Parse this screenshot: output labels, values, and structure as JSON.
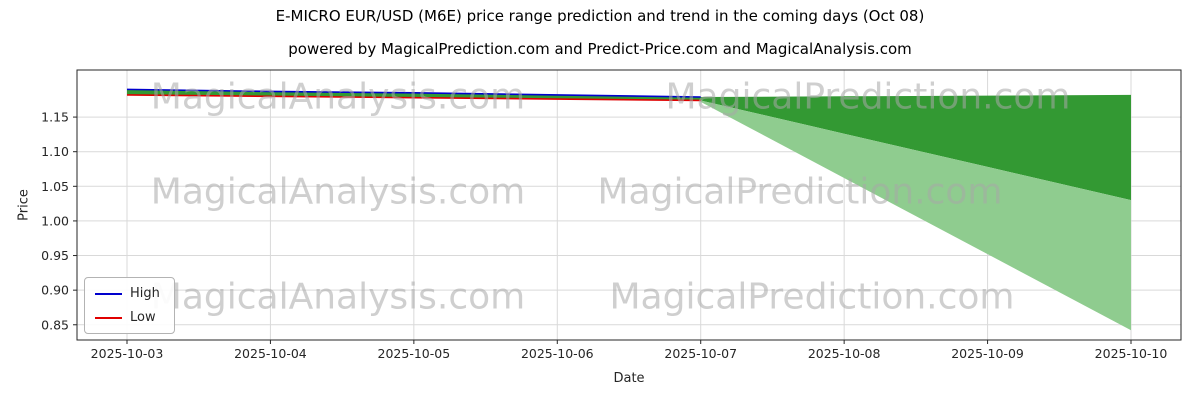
{
  "title": "E-MICRO EUR/USD (M6E) price range prediction and trend in the coming days (Oct 08)",
  "subtitle": "powered by MagicalPrediction.com and Predict-Price.com and MagicalAnalysis.com",
  "watermarks": {
    "left_text": "MagicalAnalysis.com",
    "right_text": "MagicalPrediction.com",
    "color": "#a8a8a8"
  },
  "legend": {
    "position": "lower left",
    "items": [
      {
        "label": "High",
        "color": "#0000cd"
      },
      {
        "label": "Low",
        "color": "#e00000"
      }
    ]
  },
  "chart_data": {
    "type": "line",
    "title": "E-MICRO EUR/USD (M6E) price range prediction and trend in the coming days (Oct 08)",
    "xlabel": "Date",
    "ylabel": "Price",
    "x_dates": [
      "2025-10-03",
      "2025-10-04",
      "2025-10-05",
      "2025-10-06",
      "2025-10-07",
      "2025-10-08",
      "2025-10-09",
      "2025-10-10"
    ],
    "ylim": [
      0.828,
      1.218
    ],
    "yticks": [
      0.85,
      0.9,
      0.95,
      1.0,
      1.05,
      1.1,
      1.15
    ],
    "grid": true,
    "grid_color": "#d9d9d9",
    "spine_color": "#262626",
    "series": [
      {
        "name": "High",
        "color": "#0000cd",
        "values": [
          1.19,
          1.187,
          1.185,
          1.182,
          1.179
        ]
      },
      {
        "name": "Low",
        "color": "#e00000",
        "values": [
          1.182,
          1.18,
          1.178,
          1.176,
          1.174
        ]
      }
    ],
    "forecast": {
      "band_upper": [
        1.19,
        1.187,
        1.185,
        1.182,
        1.179,
        1.18,
        1.181,
        1.182
      ],
      "band_lower": [
        1.182,
        1.18,
        1.178,
        1.176,
        1.174,
        1.126,
        1.078,
        1.03
      ],
      "cone_start_index": 4,
      "cone_upper": [
        1.174,
        1.126,
        1.078,
        1.03
      ],
      "cone_lower": [
        1.172,
        1.062,
        0.952,
        0.842
      ],
      "dark_color": "#339933",
      "light_color": "#8fcc8f"
    }
  }
}
